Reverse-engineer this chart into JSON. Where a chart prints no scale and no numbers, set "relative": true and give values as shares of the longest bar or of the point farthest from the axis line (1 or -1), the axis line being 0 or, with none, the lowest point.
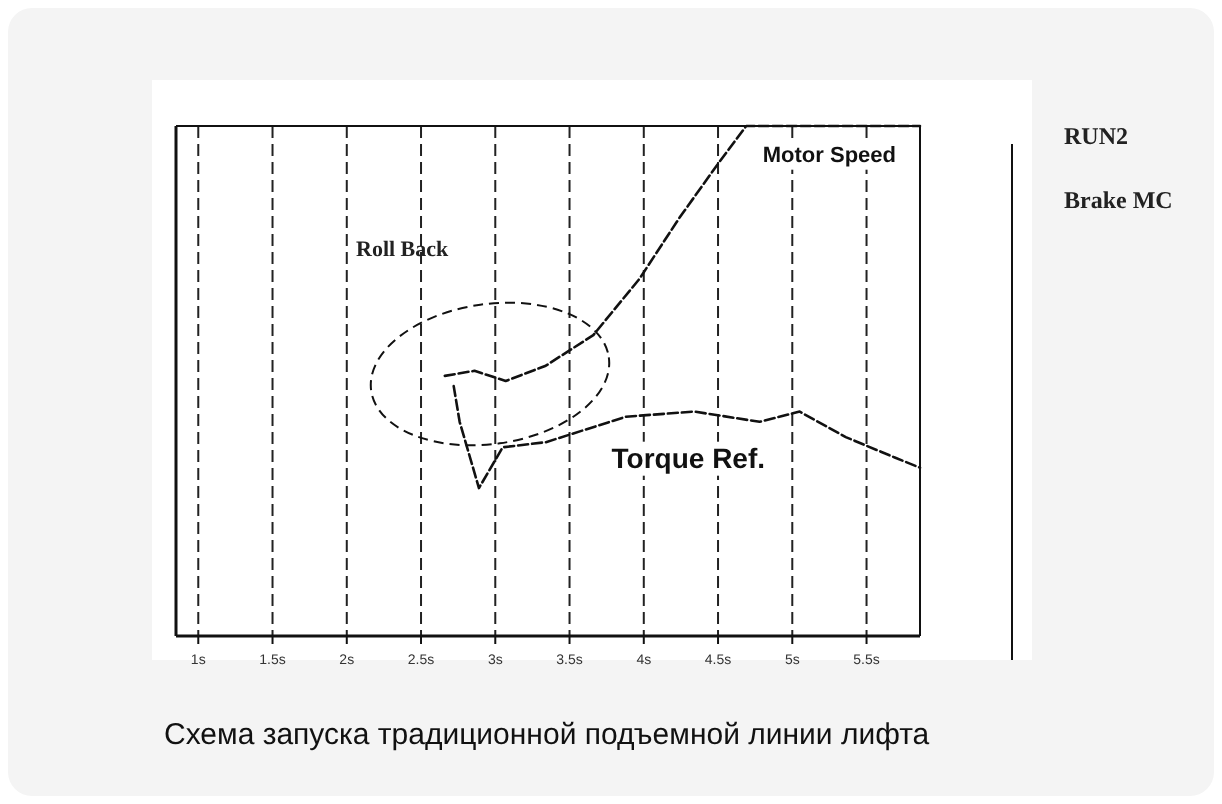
{
  "chart_data": {
    "type": "line",
    "title": "Схема запуска традиционной подъемной линии лифта",
    "relative": true,
    "grid": "x",
    "line_style": "dashed",
    "xlim": [
      0.85,
      5.86
    ],
    "xticks": [
      {
        "value": 1,
        "label": "1s"
      },
      {
        "value": 1.5,
        "label": "1.5s"
      },
      {
        "value": 2,
        "label": "2s"
      },
      {
        "value": 2.5,
        "label": "2.5s"
      },
      {
        "value": 3,
        "label": "3s"
      },
      {
        "value": 3.5,
        "label": "3.5s"
      },
      {
        "value": 4,
        "label": "4s"
      },
      {
        "value": 4.5,
        "label": "4.5s"
      },
      {
        "value": 5,
        "label": "5s"
      },
      {
        "value": 5.5,
        "label": "5.5s"
      }
    ],
    "annotations": [
      "Roll Back",
      "RUN2",
      "Brake MC"
    ],
    "series": [
      {
        "name": "Motor Speed",
        "color": "#111111",
        "x": [
          2.66,
          2.86,
          3.07,
          3.34,
          3.66,
          3.97,
          4.24,
          4.51,
          4.69,
          5.86
        ],
        "values": [
          0.51,
          0.52,
          0.5,
          0.53,
          0.59,
          0.7,
          0.82,
          0.93,
          1,
          1
        ]
      },
      {
        "name": "Torque Ref.",
        "color": "#111111",
        "x": [
          2.72,
          2.76,
          2.89,
          3.05,
          3.34,
          3.88,
          4.34,
          4.78,
          5.05,
          5.36,
          5.69,
          5.86
        ],
        "values": [
          0.49,
          0.42,
          0.29,
          0.37,
          0.38,
          0.43,
          0.44,
          0.42,
          0.44,
          0.39,
          0.35,
          0.33
        ]
      }
    ]
  }
}
